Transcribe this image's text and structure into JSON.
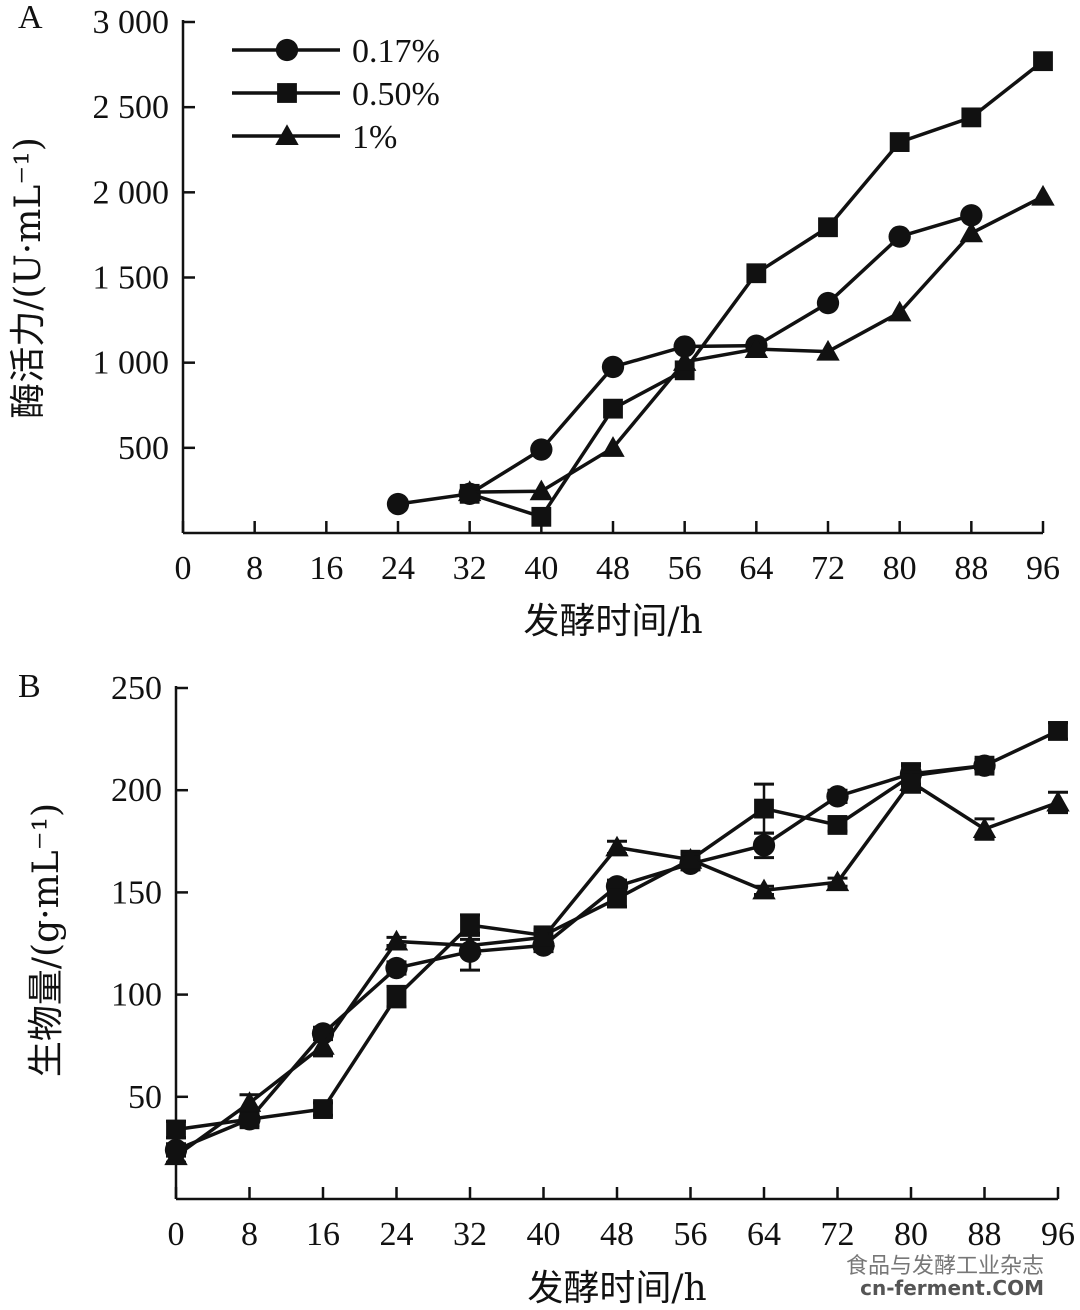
{
  "chart_data": [
    {
      "panel": "A",
      "type": "line",
      "xlabel": "发酵时间/h",
      "ylabel": "酶活力/(U·mL⁻¹)",
      "xticks": [
        0,
        8,
        16,
        24,
        32,
        40,
        48,
        56,
        64,
        72,
        80,
        88,
        96
      ],
      "yticks": [
        500,
        1000,
        1500,
        2000,
        2500,
        3000
      ],
      "ytick_labels": [
        "500",
        "1 000",
        "1 500",
        "2 000",
        "2 500",
        "3 000"
      ],
      "xlim": [
        0,
        96
      ],
      "ylim": [
        0,
        3000
      ],
      "legend": "top-left",
      "series": [
        {
          "name": "0.17%",
          "marker": "circle",
          "x": [
            24,
            32,
            40,
            48,
            56,
            64,
            72,
            80,
            88
          ],
          "y": [
            170,
            230,
            490,
            975,
            1095,
            1100,
            1350,
            1740,
            1865
          ]
        },
        {
          "name": "0.50%",
          "marker": "square",
          "x": [
            32,
            40,
            48,
            56,
            64,
            72,
            80,
            88,
            96
          ],
          "y": [
            230,
            95,
            730,
            955,
            1525,
            1795,
            2295,
            2440,
            2770
          ]
        },
        {
          "name": "1%",
          "marker": "triangle",
          "x": [
            32,
            40,
            48,
            56,
            64,
            72,
            80,
            88,
            96
          ],
          "y": [
            240,
            245,
            500,
            1005,
            1080,
            1065,
            1295,
            1760,
            1975
          ]
        }
      ]
    },
    {
      "panel": "B",
      "type": "line",
      "xlabel": "发酵时间/h",
      "ylabel": "生物量/(g·mL⁻¹)",
      "xticks": [
        0,
        8,
        16,
        24,
        32,
        40,
        48,
        56,
        64,
        72,
        80,
        88,
        96
      ],
      "yticks": [
        50,
        100,
        150,
        200,
        250
      ],
      "ytick_labels": [
        "50",
        "100",
        "150",
        "200",
        "250"
      ],
      "xlim": [
        0,
        96
      ],
      "ylim": [
        0,
        250
      ],
      "series": [
        {
          "name": "0.17%",
          "marker": "circle",
          "x": [
            0,
            8,
            16,
            24,
            32,
            40,
            48,
            56,
            64,
            72,
            80,
            88
          ],
          "y": [
            24,
            39,
            81,
            113,
            121,
            124,
            153,
            164,
            173,
            197,
            208,
            212
          ],
          "err": [
            3,
            3,
            3,
            3,
            9,
            3,
            3,
            3,
            6,
            3,
            5,
            3
          ]
        },
        {
          "name": "0.50%",
          "marker": "square",
          "x": [
            0,
            8,
            16,
            24,
            32,
            40,
            48,
            56,
            64,
            72,
            80,
            88,
            96
          ],
          "y": [
            34,
            39,
            44,
            99,
            134,
            129,
            147,
            166,
            191,
            183,
            207,
            212,
            229
          ],
          "err": [
            4,
            3,
            3,
            5,
            5,
            3,
            4,
            4,
            12,
            3,
            5,
            3,
            4
          ]
        },
        {
          "name": "1%",
          "marker": "triangle",
          "x": [
            0,
            8,
            16,
            24,
            32,
            40,
            48,
            56,
            64,
            72,
            80,
            88,
            96
          ],
          "y": [
            21,
            47,
            75,
            126,
            124,
            128,
            172,
            166,
            151,
            155,
            204,
            181,
            194
          ],
          "err": [
            3,
            4,
            5,
            2,
            3,
            3,
            3,
            3,
            2,
            2,
            5,
            5,
            5
          ]
        }
      ]
    }
  ],
  "watermark": {
    "line1": "食品与发酵工业杂志",
    "line2": "cn-ferment.COM"
  }
}
